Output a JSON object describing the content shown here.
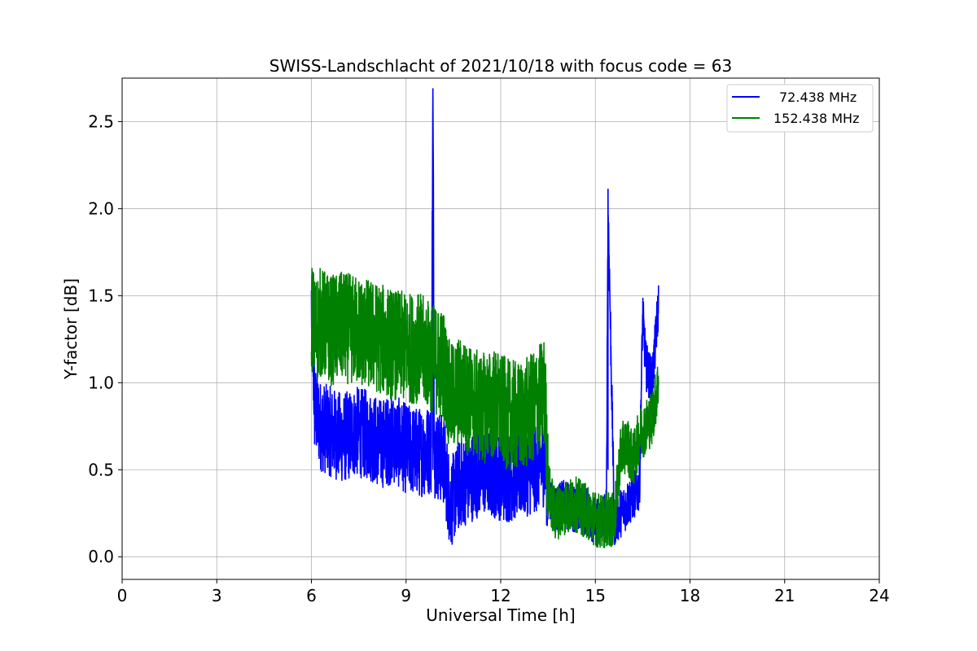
{
  "chart_data": {
    "type": "line",
    "title": "SWISS-Landschlacht of 2021/10/18 with focus code = 63",
    "xlabel": "Universal Time [h]",
    "ylabel": "Y-factor [dB]",
    "xlim": [
      0,
      24
    ],
    "ylim": [
      -0.13,
      2.75
    ],
    "xticks": [
      "0",
      "3",
      "6",
      "9",
      "12",
      "15",
      "18",
      "21",
      "24"
    ],
    "yticks": [
      "0.0",
      "0.5",
      "1.0",
      "1.5",
      "2.0",
      "2.5"
    ],
    "grid": true,
    "legend_position": "top-right",
    "series": [
      {
        "name": "72.438 MHz",
        "color": "#0000ff",
        "x": [
          6.0,
          6.1,
          6.3,
          6.6,
          7.0,
          7.4,
          7.8,
          8.2,
          8.6,
          9.0,
          9.4,
          9.8,
          9.85,
          9.9,
          10.2,
          10.4,
          10.7,
          11.0,
          11.4,
          11.8,
          12.2,
          12.6,
          13.0,
          13.4,
          13.5,
          13.7,
          14.0,
          14.4,
          14.8,
          15.0,
          15.2,
          15.35,
          15.4,
          15.6,
          15.8,
          16.0,
          16.2,
          16.4,
          16.5,
          16.6,
          16.8,
          17.0
        ],
        "y": [
          1.45,
          0.85,
          0.75,
          0.72,
          0.68,
          0.72,
          0.7,
          0.65,
          0.68,
          0.62,
          0.6,
          0.62,
          2.6,
          0.6,
          0.55,
          0.3,
          0.42,
          0.45,
          0.5,
          0.48,
          0.45,
          0.48,
          0.5,
          0.55,
          0.35,
          0.28,
          0.3,
          0.28,
          0.25,
          0.2,
          0.22,
          0.25,
          2.05,
          0.2,
          0.25,
          0.3,
          0.35,
          0.4,
          1.4,
          1.1,
          1.0,
          1.45
        ]
      },
      {
        "name": "152.438 MHz",
        "color": "#008000",
        "x": [
          6.0,
          6.1,
          6.3,
          6.6,
          7.0,
          7.4,
          7.8,
          8.2,
          8.6,
          9.0,
          9.4,
          9.8,
          10.2,
          10.4,
          10.7,
          11.0,
          11.4,
          11.8,
          12.2,
          12.6,
          13.0,
          13.4,
          13.5,
          13.7,
          14.0,
          14.4,
          14.8,
          15.0,
          15.2,
          15.4,
          15.6,
          15.8,
          16.0,
          16.2,
          16.4,
          16.6,
          16.8,
          17.0
        ],
        "y": [
          1.4,
          1.3,
          1.35,
          1.3,
          1.32,
          1.3,
          1.28,
          1.25,
          1.22,
          1.2,
          1.2,
          1.15,
          1.1,
          0.9,
          0.95,
          0.9,
          0.85,
          0.88,
          0.82,
          0.8,
          0.85,
          0.95,
          0.4,
          0.25,
          0.28,
          0.3,
          0.25,
          0.22,
          0.2,
          0.22,
          0.2,
          0.6,
          0.65,
          0.55,
          0.7,
          0.75,
          0.8,
          1.0
        ]
      }
    ]
  }
}
